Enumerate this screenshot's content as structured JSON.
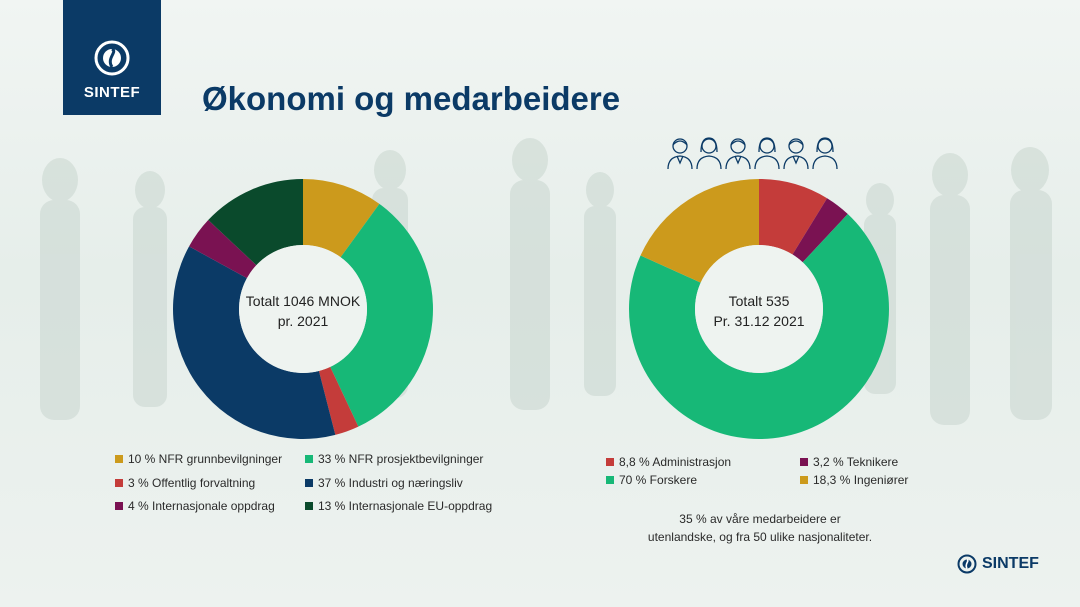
{
  "brand": {
    "name": "SINTEF",
    "color": "#0b3a66"
  },
  "title": "Økonomi og medarbeidere",
  "chart_data": [
    {
      "type": "pie",
      "donut": true,
      "center_label": [
        "Totalt 1046 MNOK",
        "pr. 2021"
      ],
      "slices": [
        {
          "label": "10 % NFR grunnbevilgninger",
          "value": 10,
          "color": "#cc9a1c"
        },
        {
          "label": "33 % NFR prosjektbevilgninger",
          "value": 33,
          "color": "#17b877"
        },
        {
          "label": "3 % Offentlig forvaltning",
          "value": 3,
          "color": "#c43c3a"
        },
        {
          "label": "37 % Industri og næringsliv",
          "value": 37,
          "color": "#0b3a66"
        },
        {
          "label": "4 % Internasjonale oppdrag",
          "value": 4,
          "color": "#7a1252"
        },
        {
          "label": "13 % Internasjonale EU-oppdrag",
          "value": 13,
          "color": "#0a4a2c"
        }
      ]
    },
    {
      "type": "pie",
      "donut": true,
      "center_label": [
        "Totalt 535",
        "Pr. 31.12 2021"
      ],
      "slices": [
        {
          "label": "8,8 % Administrasjon",
          "value": 8.8,
          "color": "#c43c3a"
        },
        {
          "label": "3,2 % Teknikere",
          "value": 3.2,
          "color": "#7a1252"
        },
        {
          "label": "70 % Forskere",
          "value": 70,
          "color": "#17b877"
        },
        {
          "label": "18,3 % Ingeniører",
          "value": 18.3,
          "color": "#cc9a1c"
        }
      ]
    }
  ],
  "note": [
    "35 % av våre medarbeidere er",
    "utenlandske, og fra 50 ulike nasjonaliteter."
  ],
  "icons": [
    "person-male-icon",
    "person-female-icon",
    "person-male-icon",
    "person-female-icon",
    "person-male-icon",
    "person-female-icon"
  ]
}
